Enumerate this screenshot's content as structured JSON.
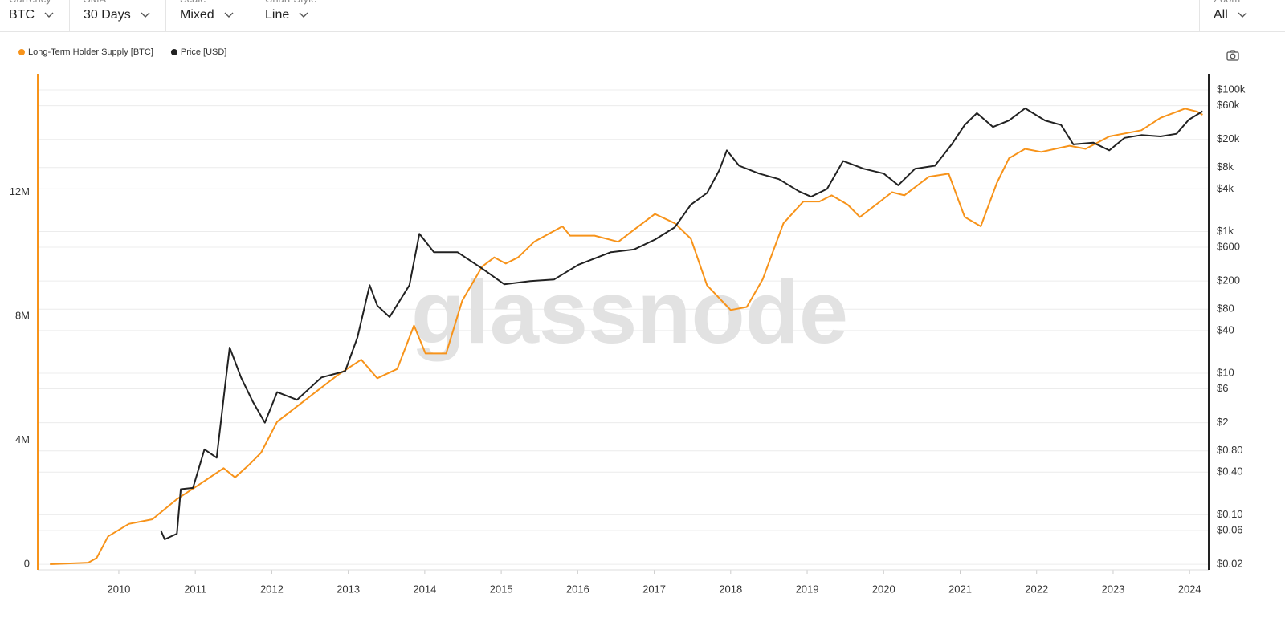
{
  "toolbar": {
    "controls": [
      {
        "label": "Currency",
        "value": "BTC"
      },
      {
        "label": "SMA",
        "value": "30 Days"
      },
      {
        "label": "Scale",
        "value": "Mixed"
      },
      {
        "label": "Chart Style",
        "value": "Line"
      },
      {
        "label": "Zoom",
        "value": "All"
      }
    ]
  },
  "chart_data": {
    "type": "line",
    "watermark": "glassnode",
    "xlim": [
      2008.94,
      2024.25
    ],
    "xticks": [
      2010,
      2011,
      2012,
      2013,
      2014,
      2015,
      2016,
      2017,
      2018,
      2019,
      2020,
      2021,
      2022,
      2023,
      2024
    ],
    "ylim": [
      -180000,
      15820000
    ],
    "yticks": [
      0,
      {
        "value": 4000000,
        "label": "4M"
      },
      {
        "value": 8000000,
        "label": "8M"
      },
      {
        "value": 12000000,
        "label": "12M"
      }
    ],
    "y2lim": [
      0.0167,
      168600
    ],
    "y2log": true,
    "y2ticks": [
      {
        "value": 0.02,
        "label": "$0.02"
      },
      {
        "value": 0.06,
        "label": "$0.06"
      },
      {
        "value": 0.1,
        "label": "$0.10"
      },
      {
        "value": 0.4,
        "label": "$0.40"
      },
      {
        "value": 0.8,
        "label": "$0.80"
      },
      {
        "value": 2,
        "label": "$2"
      },
      {
        "value": 6,
        "label": "$6"
      },
      {
        "value": 10,
        "label": "$10"
      },
      {
        "value": 40,
        "label": "$40"
      },
      {
        "value": 80,
        "label": "$80"
      },
      {
        "value": 200,
        "label": "$200"
      },
      {
        "value": 600,
        "label": "$600"
      },
      {
        "value": 1000,
        "label": "$1k"
      },
      {
        "value": 4000,
        "label": "$4k"
      },
      {
        "value": 8000,
        "label": "$8k"
      },
      {
        "value": 20000,
        "label": "$20k"
      },
      {
        "value": 60000,
        "label": "$60k"
      },
      {
        "value": 100000,
        "label": "$100k"
      }
    ],
    "grid": true,
    "series": [
      {
        "name": "Long-Term Holder Supply [BTC]",
        "color": "#f7931a",
        "axis": "y",
        "x": [
          2009.1,
          2009.6,
          2009.71,
          2009.86,
          2010.13,
          2010.44,
          2010.76,
          2011.07,
          2011.37,
          2011.52,
          2011.7,
          2011.86,
          2012.07,
          2012.44,
          2012.86,
          2013.17,
          2013.38,
          2013.64,
          2013.86,
          2014.01,
          2014.28,
          2014.49,
          2014.75,
          2014.91,
          2015.06,
          2015.22,
          2015.43,
          2015.8,
          2015.9,
          2016.22,
          2016.53,
          2016.74,
          2017.01,
          2017.27,
          2017.48,
          2017.69,
          2018.0,
          2018.21,
          2018.42,
          2018.69,
          2018.95,
          2019.16,
          2019.32,
          2019.53,
          2019.69,
          2019.9,
          2020.11,
          2020.27,
          2020.59,
          2020.85,
          2021.06,
          2021.27,
          2021.48,
          2021.64,
          2021.85,
          2022.06,
          2022.43,
          2022.64,
          2022.95,
          2023.37,
          2023.62,
          2023.94,
          2024.1,
          2024.17
        ],
        "values": [
          0,
          50000,
          200000,
          900000,
          1300000,
          1450000,
          2100000,
          2600000,
          3100000,
          2800000,
          3200000,
          3600000,
          4600000,
          5300000,
          6100000,
          6600000,
          6000000,
          6300000,
          7700000,
          6800000,
          6800000,
          8500000,
          9600000,
          9900000,
          9700000,
          9900000,
          10400000,
          10900000,
          10600000,
          10600000,
          10400000,
          10800000,
          11300000,
          11000000,
          10500000,
          9000000,
          8200000,
          8300000,
          9200000,
          11000000,
          11700000,
          11700000,
          11900000,
          11600000,
          11200000,
          11600000,
          12000000,
          11900000,
          12500000,
          12600000,
          11200000,
          10900000,
          12300000,
          13100000,
          13400000,
          13300000,
          13500000,
          13400000,
          13800000,
          14000000,
          14400000,
          14700000,
          14600000,
          14500000
        ]
      },
      {
        "name": "Price [USD]",
        "color": "#222222",
        "axis": "y2",
        "x": [
          2010.55,
          2010.6,
          2010.76,
          2010.81,
          2010.97,
          2011.12,
          2011.28,
          2011.39,
          2011.45,
          2011.6,
          2011.75,
          2011.91,
          2012.07,
          2012.33,
          2012.65,
          2012.96,
          2013.12,
          2013.28,
          2013.38,
          2013.54,
          2013.8,
          2013.93,
          2014.12,
          2014.43,
          2014.75,
          2015.04,
          2015.38,
          2015.69,
          2016.01,
          2016.43,
          2016.74,
          2017.01,
          2017.27,
          2017.48,
          2017.69,
          2017.85,
          2017.95,
          2018.11,
          2018.37,
          2018.63,
          2018.89,
          2019.05,
          2019.26,
          2019.47,
          2019.74,
          2020.0,
          2020.19,
          2020.41,
          2020.67,
          2020.89,
          2021.06,
          2021.22,
          2021.43,
          2021.64,
          2021.85,
          2022.11,
          2022.32,
          2022.48,
          2022.74,
          2022.95,
          2023.15,
          2023.37,
          2023.62,
          2023.83,
          2023.99,
          2024.17
        ],
        "values": [
          0.06,
          0.045,
          0.054,
          0.23,
          0.24,
          0.84,
          0.64,
          6.7,
          23,
          8.6,
          4,
          2,
          5.4,
          4.2,
          8.7,
          10.7,
          32,
          175,
          90,
          62,
          175,
          930,
          510,
          510,
          300,
          180,
          200,
          210,
          340,
          510,
          560,
          770,
          1150,
          2400,
          3500,
          7300,
          14000,
          8500,
          6600,
          5500,
          3700,
          3100,
          4000,
          9900,
          7700,
          6600,
          4500,
          7700,
          8500,
          17000,
          32000,
          47000,
          30000,
          37000,
          55000,
          37000,
          32000,
          17000,
          18000,
          14000,
          21000,
          23000,
          22000,
          24000,
          38000,
          50000
        ]
      }
    ]
  }
}
